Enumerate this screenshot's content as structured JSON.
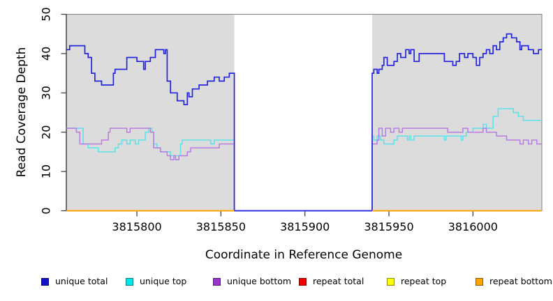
{
  "chart_data": {
    "type": "line",
    "subtype": "step-coverage-plot",
    "title": "",
    "xlabel": "Coordinate in Reference Genome",
    "ylabel": "Read Coverage Depth",
    "xlim": [
      3815758,
      3816041
    ],
    "ylim": [
      0,
      50
    ],
    "x_ticks": [
      3815800,
      3815850,
      3815900,
      3815950,
      3816000
    ],
    "y_ticks": [
      0,
      10,
      20,
      30,
      40,
      50
    ],
    "grid": "off",
    "legend_position": "bottom",
    "colors": {
      "plot_background": "#dcdcdc",
      "gap_background": "#ffffff",
      "plot_border": "#808080",
      "axis": "#1a1a1a",
      "tick": "#333333"
    },
    "covered_regions": [
      [
        3815758,
        3815858
      ],
      [
        3815940,
        3816041
      ]
    ],
    "gap_region": [
      3815858,
      3815940
    ],
    "series": [
      {
        "name": "unique top",
        "color": "#5ce2e8",
        "width": 1.5,
        "segments": [
          {
            "xend": 3816041,
            "points": [
              [
                3815758,
                21
              ],
              [
                3815768,
                17
              ],
              [
                3815771,
                16
              ],
              [
                3815777,
                15
              ],
              [
                3815787,
                16
              ],
              [
                3815789,
                17
              ],
              [
                3815791,
                18
              ],
              [
                3815794,
                17
              ],
              [
                3815796,
                18
              ],
              [
                3815799,
                17
              ],
              [
                3815801,
                18
              ],
              [
                3815805,
                20
              ],
              [
                3815807,
                21
              ],
              [
                3815809,
                20
              ],
              [
                3815810,
                17
              ],
              [
                3815812,
                16
              ],
              [
                3815814,
                15
              ],
              [
                3815820,
                14
              ],
              [
                3815826,
                17
              ],
              [
                3815827,
                18
              ],
              [
                3815844,
                17
              ],
              [
                3815846,
                18
              ],
              [
                3815858,
                0
              ],
              [
                3815940,
                19
              ],
              [
                3815941,
                18
              ],
              [
                3815943,
                19
              ],
              [
                3815945,
                18
              ],
              [
                3815947,
                17
              ],
              [
                3815953,
                18
              ],
              [
                3815955,
                19
              ],
              [
                3815961,
                18
              ],
              [
                3815962,
                19
              ],
              [
                3815963,
                18
              ],
              [
                3815965,
                19
              ],
              [
                3815983,
                18
              ],
              [
                3815984,
                19
              ],
              [
                3815993,
                18
              ],
              [
                3815994,
                19
              ],
              [
                3815996,
                20
              ],
              [
                3816000,
                21
              ],
              [
                3816006,
                22
              ],
              [
                3816008,
                21
              ],
              [
                3816012,
                24
              ],
              [
                3816015,
                26
              ],
              [
                3816024,
                25
              ],
              [
                3816027,
                24
              ],
              [
                3816030,
                23
              ]
            ]
          }
        ]
      },
      {
        "name": "unique bottom",
        "color": "#b77ce2",
        "width": 1.5,
        "segments": [
          {
            "xend": 3816041,
            "points": [
              [
                3815758,
                21
              ],
              [
                3815764,
                20
              ],
              [
                3815766,
                17
              ],
              [
                3815779,
                18
              ],
              [
                3815783,
                20
              ],
              [
                3815784,
                21
              ],
              [
                3815794,
                20
              ],
              [
                3815796,
                21
              ],
              [
                3815808,
                20
              ],
              [
                3815810,
                16
              ],
              [
                3815814,
                15
              ],
              [
                3815818,
                14
              ],
              [
                3815820,
                13
              ],
              [
                3815822,
                14
              ],
              [
                3815823,
                13
              ],
              [
                3815825,
                14
              ],
              [
                3815830,
                15
              ],
              [
                3815832,
                16
              ],
              [
                3815849,
                17
              ],
              [
                3815858,
                0
              ],
              [
                3815940,
                17
              ],
              [
                3815943,
                18
              ],
              [
                3815944,
                21
              ],
              [
                3815946,
                19
              ],
              [
                3815948,
                21
              ],
              [
                3815951,
                20
              ],
              [
                3815953,
                21
              ],
              [
                3815956,
                20
              ],
              [
                3815958,
                21
              ],
              [
                3815985,
                20
              ],
              [
                3815994,
                21
              ],
              [
                3815997,
                20
              ],
              [
                3816006,
                21
              ],
              [
                3816008,
                20
              ],
              [
                3816014,
                19
              ],
              [
                3816020,
                18
              ],
              [
                3816028,
                17
              ],
              [
                3816030,
                18
              ],
              [
                3816033,
                17
              ],
              [
                3816035,
                18
              ],
              [
                3816038,
                17
              ]
            ]
          }
        ]
      },
      {
        "name": "unique total",
        "color": "#2424dd",
        "width": 1.7,
        "segments": [
          {
            "xend": 3816041,
            "points": [
              [
                3815758,
                41
              ],
              [
                3815760,
                42
              ],
              [
                3815769,
                40
              ],
              [
                3815771,
                39
              ],
              [
                3815773,
                35
              ],
              [
                3815775,
                33
              ],
              [
                3815779,
                32
              ],
              [
                3815786,
                35
              ],
              [
                3815787,
                36
              ],
              [
                3815794,
                39
              ],
              [
                3815800,
                38
              ],
              [
                3815804,
                36
              ],
              [
                3815805,
                38
              ],
              [
                3815808,
                39
              ],
              [
                3815811,
                41
              ],
              [
                3815816,
                40
              ],
              [
                3815817,
                41
              ],
              [
                3815818,
                33
              ],
              [
                3815820,
                30
              ],
              [
                3815824,
                28
              ],
              [
                3815828,
                27
              ],
              [
                3815830,
                30
              ],
              [
                3815831,
                29
              ],
              [
                3815833,
                31
              ],
              [
                3815837,
                32
              ],
              [
                3815842,
                33
              ],
              [
                3815846,
                34
              ],
              [
                3815849,
                33
              ],
              [
                3815852,
                34
              ],
              [
                3815855,
                35
              ],
              [
                3815858,
                0
              ],
              [
                3815940,
                35
              ],
              [
                3815941,
                36
              ],
              [
                3815943,
                35
              ],
              [
                3815944,
                36
              ],
              [
                3815946,
                37
              ],
              [
                3815947,
                39
              ],
              [
                3815949,
                37
              ],
              [
                3815953,
                38
              ],
              [
                3815955,
                40
              ],
              [
                3815957,
                39
              ],
              [
                3815960,
                41
              ],
              [
                3815962,
                40
              ],
              [
                3815963,
                41
              ],
              [
                3815965,
                38
              ],
              [
                3815968,
                40
              ],
              [
                3815983,
                38
              ],
              [
                3815988,
                37
              ],
              [
                3815990,
                38
              ],
              [
                3815992,
                40
              ],
              [
                3815995,
                39
              ],
              [
                3815997,
                40
              ],
              [
                3816000,
                39
              ],
              [
                3816002,
                37
              ],
              [
                3816004,
                39
              ],
              [
                3816006,
                40
              ],
              [
                3816008,
                41
              ],
              [
                3816010,
                40
              ],
              [
                3816012,
                42
              ],
              [
                3816014,
                41
              ],
              [
                3816016,
                43
              ],
              [
                3816018,
                44
              ],
              [
                3816020,
                45
              ],
              [
                3816023,
                44
              ],
              [
                3816026,
                43
              ],
              [
                3816028,
                41
              ],
              [
                3816029,
                42
              ],
              [
                3816033,
                41
              ],
              [
                3816036,
                40
              ],
              [
                3816039,
                41
              ]
            ]
          }
        ]
      },
      {
        "name": "repeat total",
        "color": "#ee0000",
        "width": 1.5,
        "segments": [
          {
            "xend": 3815858,
            "points": [
              [
                3815758,
                0
              ]
            ]
          },
          {
            "xend": 3816041,
            "points": [
              [
                3815940,
                0
              ]
            ]
          }
        ]
      },
      {
        "name": "repeat top",
        "color": "#ffff00",
        "width": 1.5,
        "segments": [
          {
            "xend": 3815858,
            "points": [
              [
                3815758,
                0
              ]
            ]
          },
          {
            "xend": 3816041,
            "points": [
              [
                3815940,
                0
              ]
            ]
          }
        ]
      },
      {
        "name": "repeat bottom",
        "color": "#ffa500",
        "width": 2,
        "segments": [
          {
            "xend": 3815858,
            "points": [
              [
                3815758,
                0
              ]
            ]
          },
          {
            "xend": 3816041,
            "points": [
              [
                3815940,
                0
              ]
            ]
          }
        ]
      }
    ]
  },
  "legend": {
    "items": [
      {
        "label": "unique total",
        "swatch": "#1111cc"
      },
      {
        "label": "unique top",
        "swatch": "#00e8ee"
      },
      {
        "label": "unique bottom",
        "swatch": "#9933cc"
      },
      {
        "label": "repeat total",
        "swatch": "#ee0000"
      },
      {
        "label": "repeat top",
        "swatch": "#ffff00"
      },
      {
        "label": "repeat bottom",
        "swatch": "#ffa500"
      }
    ]
  }
}
